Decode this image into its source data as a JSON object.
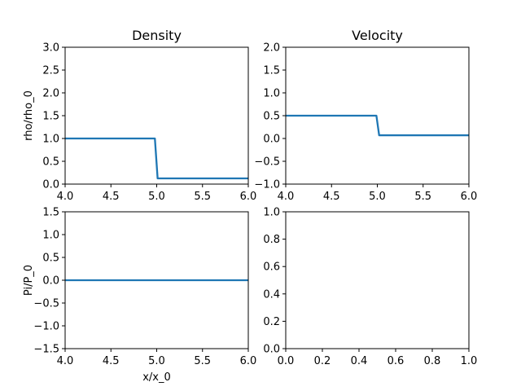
{
  "chart_data": [
    {
      "type": "line",
      "title": "Density",
      "xlabel": "",
      "ylabel": "rho/rho_0",
      "xlim": [
        4.0,
        6.0
      ],
      "ylim": [
        0.0,
        3.0
      ],
      "xticks": [
        "4.0",
        "4.5",
        "5.0",
        "5.5",
        "6.0"
      ],
      "yticks": [
        "0.0",
        "0.5",
        "1.0",
        "1.5",
        "2.0",
        "2.5",
        "3.0"
      ],
      "grid": false,
      "series": [
        {
          "x": [
            4.0,
            4.98,
            5.01,
            6.0
          ],
          "y": [
            1.0,
            1.0,
            0.125,
            0.125
          ]
        }
      ]
    },
    {
      "type": "line",
      "title": "Velocity",
      "xlabel": "",
      "ylabel": "",
      "xlim": [
        4.0,
        6.0
      ],
      "ylim": [
        -1.0,
        2.0
      ],
      "xticks": [
        "4.0",
        "4.5",
        "5.0",
        "5.5",
        "6.0"
      ],
      "yticks": [
        "−1.0",
        "−0.5",
        "0.0",
        "0.5",
        "1.0",
        "1.5",
        "2.0"
      ],
      "grid": false,
      "series": [
        {
          "x": [
            4.0,
            4.99,
            5.02,
            6.0
          ],
          "y": [
            0.5,
            0.5,
            0.07,
            0.07
          ]
        }
      ]
    },
    {
      "type": "line",
      "title": "",
      "xlabel": "x/x_0",
      "ylabel": "Pi/P_0",
      "xlim": [
        4.0,
        6.0
      ],
      "ylim": [
        -1.5,
        1.5
      ],
      "xticks": [
        "4.0",
        "4.5",
        "5.0",
        "5.5",
        "6.0"
      ],
      "yticks": [
        "−1.5",
        "−1.0",
        "−0.5",
        "0.0",
        "0.5",
        "1.0",
        "1.5"
      ],
      "grid": false,
      "series": [
        {
          "x": [
            4.0,
            6.0
          ],
          "y": [
            0.0,
            0.0
          ]
        }
      ]
    },
    {
      "type": "line",
      "title": "",
      "xlabel": "",
      "ylabel": "",
      "xlim": [
        0.0,
        1.0
      ],
      "ylim": [
        0.0,
        1.0
      ],
      "xticks": [
        "0.0",
        "0.2",
        "0.4",
        "0.6",
        "0.8",
        "1.0"
      ],
      "yticks": [
        "0.0",
        "0.2",
        "0.4",
        "0.6",
        "0.8",
        "1.0"
      ],
      "grid": false,
      "series": []
    }
  ],
  "colors": {
    "series": "#1f77b4",
    "axes": "#000000",
    "background": "#ffffff"
  }
}
